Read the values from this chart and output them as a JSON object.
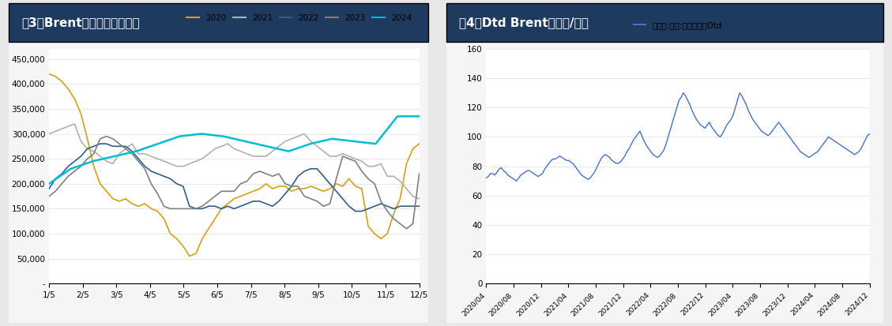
{
  "fig3_title": "图3：Brent基金净持仓（手）",
  "fig4_title": "图4：Dtd Brent（美元/桶）",
  "title_bg_color": "#1e3a5f",
  "title_text_color": "#ffffff",
  "fig3_xlabel_ticks": [
    "1/5",
    "2/5",
    "3/5",
    "4/5",
    "5/5",
    "6/5",
    "7/5",
    "8/5",
    "9/5",
    "10/5",
    "11/5",
    "12/5"
  ],
  "fig3_ylim": [
    0,
    470000
  ],
  "fig3_yticks": [
    0,
    50000,
    100000,
    150000,
    200000,
    250000,
    300000,
    350000,
    400000,
    450000
  ],
  "fig3_ytick_labels": [
    "-",
    "50,000",
    "100,000",
    "150,000",
    "200,000",
    "250,000",
    "300,000",
    "350,000",
    "400,000",
    "450,000"
  ],
  "fig4_ylim": [
    0,
    160
  ],
  "fig4_yticks": [
    0,
    20,
    40,
    60,
    80,
    100,
    120,
    140,
    160
  ],
  "line_colors": {
    "2020": "#d4a017",
    "2021": "#b0b0b0",
    "2022": "#2e5f8a",
    "2023": "#808080",
    "2024": "#00bcd4"
  },
  "fig4_line_color": "#4472c4",
  "fig4_legend_label": "现货价:原油:英国布伦特Dtd",
  "panel_bg_color": "#f0f0f0",
  "plot_bg_color": "#ffffff",
  "fig3_2020": [
    420000,
    415000,
    405000,
    390000,
    370000,
    340000,
    290000,
    235000,
    200000,
    185000,
    170000,
    165000,
    170000,
    160000,
    155000,
    160000,
    150000,
    145000,
    130000,
    100000,
    90000,
    75000,
    55000,
    60000,
    90000,
    110000,
    130000,
    150000,
    160000,
    170000,
    175000,
    180000,
    185000,
    190000,
    200000,
    190000,
    195000,
    195000,
    185000,
    190000,
    190000,
    195000,
    190000,
    185000,
    190000,
    200000,
    195000,
    210000,
    195000,
    190000,
    115000,
    100000,
    90000,
    100000,
    140000,
    170000,
    240000,
    270000,
    280000
  ],
  "fig3_2021": [
    300000,
    305000,
    310000,
    315000,
    320000,
    285000,
    270000,
    265000,
    255000,
    245000,
    240000,
    260000,
    270000,
    280000,
    260000,
    260000,
    255000,
    250000,
    245000,
    240000,
    235000,
    235000,
    240000,
    245000,
    250000,
    260000,
    270000,
    275000,
    280000,
    270000,
    265000,
    260000,
    255000,
    255000,
    255000,
    265000,
    275000,
    285000,
    290000,
    295000,
    300000,
    285000,
    275000,
    265000,
    255000,
    255000,
    260000,
    255000,
    250000,
    245000,
    235000,
    235000,
    240000,
    215000,
    215000,
    205000,
    190000,
    175000,
    170000
  ],
  "fig3_2022": [
    190000,
    210000,
    220000,
    235000,
    245000,
    255000,
    270000,
    275000,
    280000,
    280000,
    275000,
    275000,
    275000,
    265000,
    250000,
    235000,
    225000,
    220000,
    215000,
    210000,
    200000,
    195000,
    155000,
    150000,
    150000,
    155000,
    155000,
    150000,
    155000,
    150000,
    155000,
    160000,
    165000,
    165000,
    160000,
    155000,
    165000,
    180000,
    195000,
    215000,
    225000,
    230000,
    230000,
    215000,
    200000,
    185000,
    170000,
    155000,
    145000,
    145000,
    150000,
    155000,
    160000,
    155000,
    150000,
    155000,
    155000,
    155000,
    155000
  ],
  "fig3_2023": [
    175000,
    185000,
    200000,
    215000,
    225000,
    235000,
    250000,
    260000,
    290000,
    295000,
    290000,
    280000,
    270000,
    260000,
    245000,
    230000,
    200000,
    180000,
    155000,
    150000,
    150000,
    150000,
    150000,
    150000,
    155000,
    165000,
    175000,
    185000,
    185000,
    185000,
    200000,
    205000,
    220000,
    225000,
    220000,
    215000,
    220000,
    200000,
    195000,
    195000,
    175000,
    170000,
    165000,
    155000,
    160000,
    210000,
    255000,
    250000,
    245000,
    225000,
    210000,
    200000,
    165000,
    145000,
    130000,
    120000,
    110000,
    120000,
    220000
  ],
  "fig3_2024": [
    200000,
    230000,
    245000,
    255000,
    265000,
    280000,
    295000,
    300000,
    295000,
    285000,
    275000,
    265000,
    280000,
    290000,
    285000,
    280000,
    335000,
    335000
  ],
  "fig4_data": [
    72,
    73,
    75,
    75,
    74,
    76,
    78,
    79,
    77,
    76,
    74,
    73,
    72,
    71,
    70,
    72,
    74,
    75,
    76,
    77,
    77,
    76,
    75,
    74,
    73,
    74,
    75,
    78,
    80,
    82,
    84,
    85,
    85,
    86,
    87,
    86,
    85,
    84,
    84,
    83,
    82,
    80,
    78,
    76,
    74,
    73,
    72,
    71,
    72,
    74,
    76,
    79,
    82,
    85,
    87,
    88,
    87,
    86,
    84,
    83,
    82,
    82,
    83,
    85,
    87,
    90,
    92,
    95,
    98,
    100,
    102,
    104,
    100,
    97,
    94,
    92,
    90,
    88,
    87,
    86,
    87,
    89,
    91,
    95,
    100,
    105,
    110,
    115,
    120,
    125,
    127,
    130,
    128,
    125,
    122,
    118,
    115,
    112,
    110,
    108,
    107,
    106,
    108,
    110,
    107,
    105,
    103,
    101,
    100,
    102,
    105,
    108,
    110,
    112,
    115,
    120,
    125,
    130,
    128,
    125,
    122,
    118,
    115,
    112,
    110,
    108,
    106,
    104,
    103,
    102,
    101,
    102,
    104,
    106,
    108,
    110,
    108,
    106,
    104,
    102,
    100,
    98,
    96,
    94,
    92,
    90,
    89,
    88,
    87,
    86,
    87,
    88,
    89,
    90,
    92,
    94,
    96,
    98,
    100,
    99,
    98,
    97,
    96,
    95,
    94,
    93,
    92,
    91,
    90,
    89,
    88,
    89,
    90,
    92,
    95,
    98,
    101,
    102
  ],
  "fig4_xtick_labels": [
    "2020/04",
    "2020/08",
    "2020/12",
    "2021/04",
    "2021/08",
    "2021/12",
    "2022/04",
    "2022/08",
    "2022/12",
    "2023/04",
    "2023/08",
    "2023/12",
    "2024/04",
    "2024/08",
    "2024/12"
  ]
}
